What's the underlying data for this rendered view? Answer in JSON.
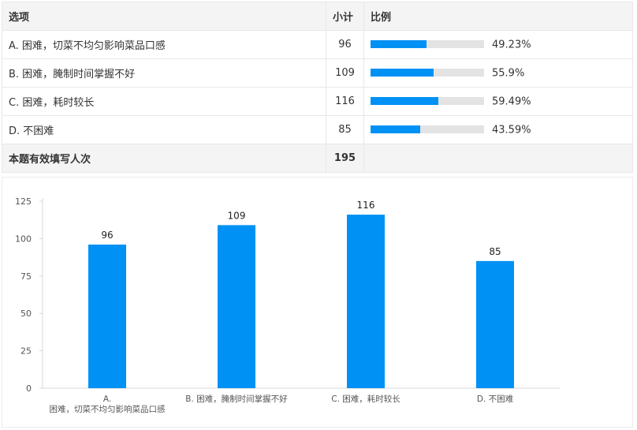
{
  "table": {
    "headers": {
      "option": "选项",
      "count": "小计",
      "ratio": "比例"
    },
    "rows": [
      {
        "label": "A. 困难，切菜不均匀影响菜品口感",
        "count": "96",
        "percent": "49.23%",
        "ratio": 0.4923
      },
      {
        "label": "B. 困难，腌制时间掌握不好",
        "count": "109",
        "percent": "55.9%",
        "ratio": 0.559
      },
      {
        "label": "C. 困难，耗时较长",
        "count": "116",
        "percent": "59.49%",
        "ratio": 0.5949
      },
      {
        "label": "D. 不困难",
        "count": "85",
        "percent": "43.59%",
        "ratio": 0.4359
      }
    ],
    "total": {
      "label": "本题有效填写人次",
      "count": "195"
    }
  },
  "colors": {
    "bar": "#0091f5",
    "track": "#e3e3e3"
  },
  "chart_data": {
    "type": "bar",
    "categories": [
      "A. 困难，切菜不均匀影响菜品口感",
      "B. 困难，腌制时间掌握不好",
      "C. 困难，耗时较长",
      "D. 不困难"
    ],
    "category_lines": [
      [
        "A.",
        "困难，切菜不均匀影响菜品口感"
      ],
      [
        "B. 困难，腌制时间掌握不好"
      ],
      [
        "C. 困难，耗时较长"
      ],
      [
        "D. 不困难"
      ]
    ],
    "values": [
      96,
      109,
      116,
      85
    ],
    "ylim": [
      0,
      125
    ],
    "yticks": [
      0,
      25,
      50,
      75,
      100,
      125
    ],
    "grid": false,
    "legend": "none"
  }
}
